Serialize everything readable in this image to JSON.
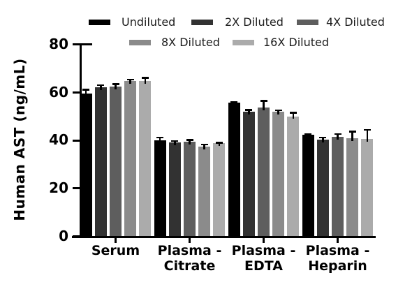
{
  "figure": {
    "background": "#ffffff",
    "axis_color": "#000000"
  },
  "chart_data": {
    "type": "bar",
    "title": "",
    "ylabel": "Human AST (ng/mL)",
    "xlabel": "",
    "ylim": [
      0,
      80
    ],
    "yticks": [
      0,
      20,
      40,
      60,
      80
    ],
    "grid": false,
    "legend_position": "top",
    "legend_rows": [
      [
        "Undiluted",
        "2X Diluted",
        "4X Diluted"
      ],
      [
        "8X Diluted",
        "16X Diluted"
      ]
    ],
    "categories": [
      "Serum",
      "Plasma - Citrate",
      "Plasma - EDTA",
      "Plasma - Heparin"
    ],
    "category_label_lines": [
      [
        "Serum"
      ],
      [
        "Plasma -",
        "Citrate"
      ],
      [
        "Plasma -",
        "EDTA"
      ],
      [
        "Plasma -",
        "Heparin"
      ]
    ],
    "error_bars": "upper_sd",
    "series": [
      {
        "name": "Undiluted",
        "color": "#000000",
        "values": [
          59.6,
          40.0,
          55.8,
          42.5
        ],
        "errors": [
          1.9,
          1.6,
          0.6,
          0.5
        ]
      },
      {
        "name": "2X Diluted",
        "color": "#323232",
        "values": [
          62.3,
          39.1,
          52.0,
          40.2
        ],
        "errors": [
          1.2,
          1.0,
          1.1,
          1.4
        ]
      },
      {
        "name": "4X Diluted",
        "color": "#5e5e5e",
        "values": [
          62.6,
          39.6,
          53.8,
          41.4
        ],
        "errors": [
          1.2,
          0.9,
          3.1,
          1.7
        ]
      },
      {
        "name": "8X Diluted",
        "color": "#8b8b8b",
        "values": [
          64.9,
          37.3,
          52.0,
          41.0
        ],
        "errors": [
          0.9,
          1.4,
          0.9,
          3.0
        ]
      },
      {
        "name": "16X Diluted",
        "color": "#ababab",
        "values": [
          64.8,
          38.9,
          50.1,
          40.5
        ],
        "errors": [
          1.7,
          0.5,
          1.8,
          4.3
        ]
      }
    ]
  }
}
